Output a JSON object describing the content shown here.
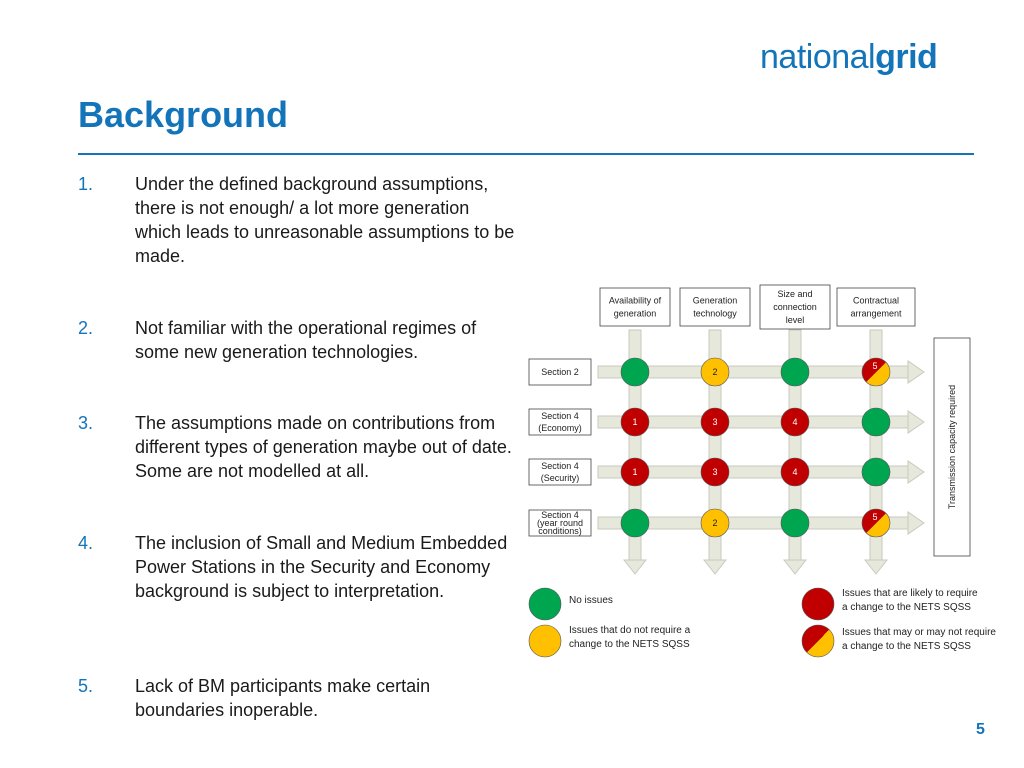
{
  "logo": {
    "part1": "national",
    "part2": "grid"
  },
  "title": "Background",
  "points": [
    {
      "num": "1.",
      "text": "Under the defined background assumptions, there is not enough/ a lot more generation which leads to unreasonable assumptions to be made."
    },
    {
      "num": "2.",
      "text": "Not familiar with the operational regimes of some new generation technologies."
    },
    {
      "num": "3.",
      "text": "The assumptions made on contributions from different types of generation maybe out of date. Some are not modelled at all."
    },
    {
      "num": "4.",
      "text": "The inclusion of Small and Medium Embedded Power Stations in the Security and Economy background is subject to interpretation."
    },
    {
      "num": "5.",
      "text": "Lack of BM participants make certain boundaries inoperable."
    }
  ],
  "diagram": {
    "columns": [
      {
        "lines": [
          "Availability of",
          "generation"
        ]
      },
      {
        "lines": [
          "Generation",
          "technology"
        ]
      },
      {
        "lines": [
          "Size and",
          "connection",
          "level"
        ]
      },
      {
        "lines": [
          "Contractual",
          "arrangement"
        ]
      }
    ],
    "rows": [
      {
        "lines": [
          "Section 2"
        ],
        "cells": [
          {
            "status": "green",
            "label": ""
          },
          {
            "status": "amber",
            "label": "2"
          },
          {
            "status": "green",
            "label": ""
          },
          {
            "status": "red-amber",
            "label": "5"
          }
        ]
      },
      {
        "lines": [
          "Section 4",
          "(Economy)"
        ],
        "cells": [
          {
            "status": "red",
            "label": "1"
          },
          {
            "status": "red",
            "label": "3"
          },
          {
            "status": "red",
            "label": "4"
          },
          {
            "status": "green",
            "label": ""
          }
        ]
      },
      {
        "lines": [
          "Section 4",
          "(Security)"
        ],
        "cells": [
          {
            "status": "red",
            "label": "1"
          },
          {
            "status": "red",
            "label": "3"
          },
          {
            "status": "red",
            "label": "4"
          },
          {
            "status": "green",
            "label": ""
          }
        ]
      },
      {
        "lines": [
          "Section 4",
          "(year round",
          "conditions)"
        ],
        "cells": [
          {
            "status": "green",
            "label": ""
          },
          {
            "status": "amber",
            "label": "2"
          },
          {
            "status": "green",
            "label": ""
          },
          {
            "status": "red-amber",
            "label": "5"
          }
        ]
      }
    ],
    "side_label": "Transmission capacity required",
    "legend": [
      {
        "status": "green",
        "lines": [
          "No issues"
        ]
      },
      {
        "status": "red",
        "lines": [
          "Issues that are likely to require",
          "a change to the NETS SQSS"
        ]
      },
      {
        "status": "amber",
        "lines": [
          "Issues that do not require a",
          "change to the NETS SQSS"
        ]
      },
      {
        "status": "red-amber",
        "lines": [
          "Issues that may or may not require",
          "a change to the NETS SQSS"
        ]
      }
    ],
    "colors": {
      "green": "#00a550",
      "amber": "#ffc000",
      "red": "#c00000",
      "arrow": "#e6e8dc",
      "arrow_edge": "#c8cabc"
    }
  },
  "page_number": "5"
}
